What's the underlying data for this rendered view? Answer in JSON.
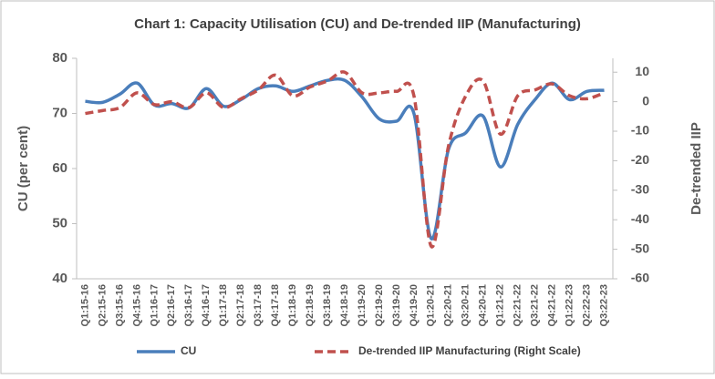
{
  "chart_data": {
    "type": "line",
    "title": "Chart 1: Capacity Utilisation (CU) and De-trended IIP (Manufacturing)",
    "y_label": "CU (per cent)",
    "y2_label": "De-trended IIP",
    "categories": [
      "Q1:15-16",
      "Q2:15-16",
      "Q3:15-16",
      "Q4:15-16",
      "Q1:16-17",
      "Q2:16-17",
      "Q3:16-17",
      "Q4:16-17",
      "Q1:17-18",
      "Q2:17-18",
      "Q3:17-18",
      "Q4:17-18",
      "Q1:18-19",
      "Q2:18-19",
      "Q3:18-19",
      "Q4:18-19",
      "Q1:19-20",
      "Q2:19-20",
      "Q3:19-20",
      "Q4:19-20",
      "Q1:20-21",
      "Q2:20-21",
      "Q3:20-21",
      "Q4:20-21",
      "Q1:21-22",
      "Q2:21-22",
      "Q3:21-22",
      "Q4:21-22",
      "Q1:22-23",
      "Q2:22-23",
      "Q3:22-23"
    ],
    "series": [
      {
        "name": "CU",
        "color": "#4a7ebb",
        "axis": "y",
        "dash": false,
        "values": [
          72.2,
          72,
          73.5,
          75.5,
          71.5,
          71.8,
          71,
          74.5,
          71.3,
          72.5,
          74.5,
          75,
          74,
          75,
          76,
          76,
          73,
          69,
          68.6,
          70,
          47.3,
          63.5,
          66.5,
          69.5,
          60.3,
          68,
          72.5,
          75.5,
          72.5,
          74,
          74.2
        ]
      },
      {
        "name": "De-trended  IIP Manufacturing (Right Scale)",
        "color": "#c0504d",
        "axis": "y2",
        "dash": true,
        "values": [
          -4,
          -3,
          -2,
          3,
          -1,
          0,
          -2,
          3,
          -2,
          1,
          4,
          9,
          2,
          5,
          7,
          10,
          3,
          3,
          3.5,
          2,
          -49,
          -15,
          2,
          7,
          -11,
          2,
          4,
          6,
          2,
          1,
          3
        ]
      }
    ],
    "ylim": [
      40,
      80
    ],
    "yticks": [
      40,
      50,
      60,
      70,
      80
    ],
    "y2lim": [
      -60,
      14.7
    ],
    "y2ticks": [
      -60,
      -50,
      -40,
      -30,
      -20,
      -10,
      0,
      10
    ]
  }
}
